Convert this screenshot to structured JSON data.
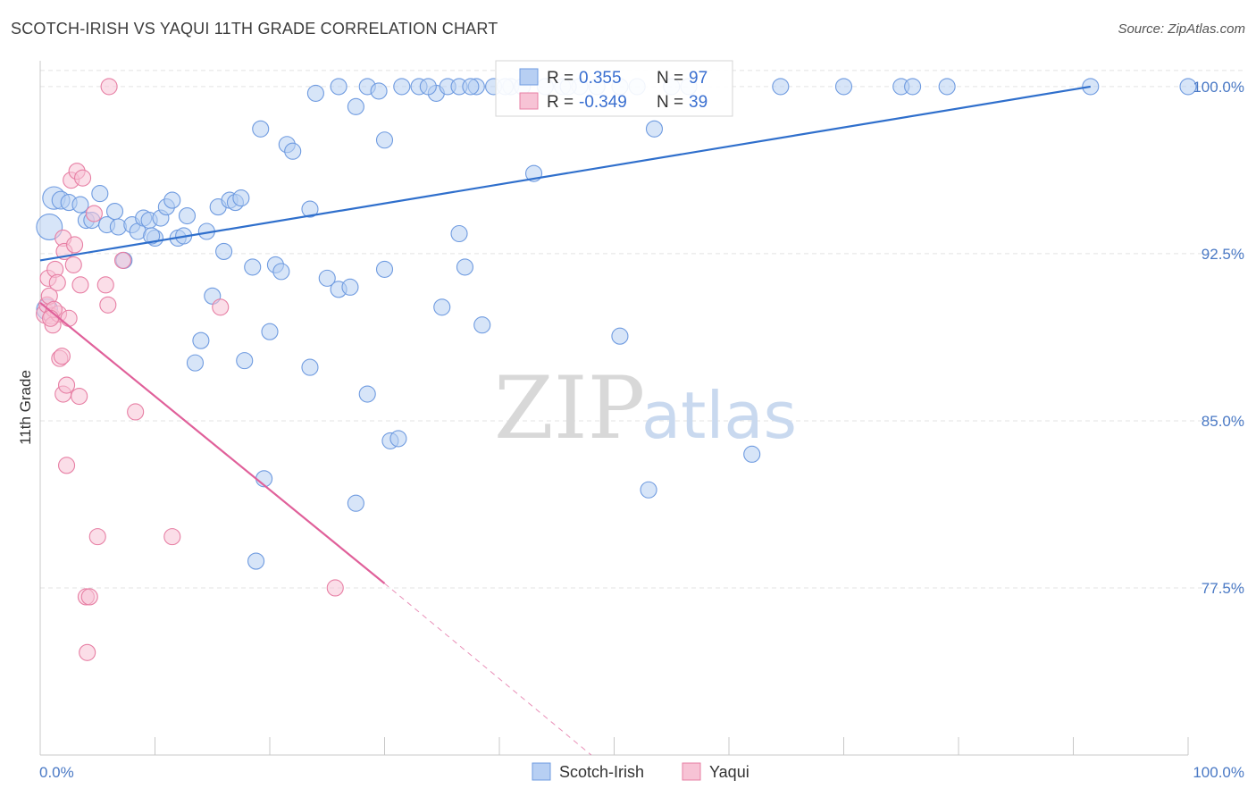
{
  "title": "SCOTCH-IRISH VS YAQUI 11TH GRADE CORRELATION CHART",
  "source": "Source: ZipAtlas.com",
  "watermark": {
    "zip": "ZIP",
    "atlas": "atlas"
  },
  "chart_data": {
    "type": "scatter",
    "title": "SCOTCH-IRISH VS YAQUI 11TH GRADE CORRELATION CHART",
    "xlabel": "",
    "ylabel": "11th Grade",
    "xlim": [
      0,
      100
    ],
    "ylim": [
      70.0,
      101.4
    ],
    "x_tick_labels": [
      {
        "value": 0,
        "label": "0.0%"
      },
      {
        "value": 100,
        "label": "100.0%"
      }
    ],
    "y_ticks": [
      {
        "value": 100.0,
        "label": "100.0%"
      },
      {
        "value": 92.5,
        "label": "92.5%"
      },
      {
        "value": 85.0,
        "label": "85.0%"
      },
      {
        "value": 77.5,
        "label": "77.5%"
      }
    ],
    "grid": true,
    "legend_position": "top-center",
    "legend": [
      {
        "name": "Scotch-Irish",
        "r_label": "R =",
        "r_value": "0.355",
        "n_label": "N =",
        "n_value": "97",
        "color": "#6f9be0",
        "fill": "#b7cff3"
      },
      {
        "name": "Yaqui",
        "r_label": "R =",
        "r_value": "-0.349",
        "n_label": "N =",
        "n_value": "39",
        "color": "#e77fa4",
        "fill": "#f7c3d5"
      }
    ],
    "series": [
      {
        "name": "Scotch-Irish",
        "color": "#6f9be0",
        "fill": "#b7cff3",
        "trend": {
          "x": [
            0,
            91.5
          ],
          "y": [
            92.2,
            100.0
          ],
          "color": "#2f6fcc"
        },
        "points": [
          {
            "x": 1.2,
            "y": 95.0,
            "s": 1.4
          },
          {
            "x": 1.8,
            "y": 94.9,
            "s": 1.1
          },
          {
            "x": 2.5,
            "y": 94.8,
            "s": 1.0
          },
          {
            "x": 3.5,
            "y": 94.7,
            "s": 1.0
          },
          {
            "x": 4.0,
            "y": 94.0,
            "s": 1.0
          },
          {
            "x": 4.5,
            "y": 94.0,
            "s": 1.0
          },
          {
            "x": 5.2,
            "y": 95.2,
            "s": 1.0
          },
          {
            "x": 5.8,
            "y": 93.8,
            "s": 1.0
          },
          {
            "x": 6.5,
            "y": 94.4,
            "s": 1.0
          },
          {
            "x": 6.8,
            "y": 93.7,
            "s": 1.0
          },
          {
            "x": 8.0,
            "y": 93.8,
            "s": 1.0
          },
          {
            "x": 8.5,
            "y": 93.5,
            "s": 1.0
          },
          {
            "x": 9.0,
            "y": 94.1,
            "s": 1.0
          },
          {
            "x": 9.5,
            "y": 94.0,
            "s": 1.0
          },
          {
            "x": 10.0,
            "y": 93.2,
            "s": 1.0
          },
          {
            "x": 10.5,
            "y": 94.1,
            "s": 1.0
          },
          {
            "x": 11.0,
            "y": 94.6,
            "s": 1.0
          },
          {
            "x": 11.5,
            "y": 94.9,
            "s": 1.0
          },
          {
            "x": 12.0,
            "y": 93.2,
            "s": 1.0
          },
          {
            "x": 12.5,
            "y": 93.3,
            "s": 1.0
          },
          {
            "x": 12.8,
            "y": 94.2,
            "s": 1.0
          },
          {
            "x": 14.5,
            "y": 93.5,
            "s": 1.0
          },
          {
            "x": 15.5,
            "y": 94.6,
            "s": 1.0
          },
          {
            "x": 16.5,
            "y": 94.9,
            "s": 1.0
          },
          {
            "x": 17.0,
            "y": 94.8,
            "s": 1.0
          },
          {
            "x": 17.5,
            "y": 95.0,
            "s": 1.0
          },
          {
            "x": 0.8,
            "y": 93.7,
            "s": 1.6
          },
          {
            "x": 0.6,
            "y": 90.0,
            "s": 1.3
          },
          {
            "x": 7.3,
            "y": 92.2,
            "s": 1.0
          },
          {
            "x": 15.0,
            "y": 90.6,
            "s": 1.0
          },
          {
            "x": 16.0,
            "y": 92.6,
            "s": 1.0
          },
          {
            "x": 18.5,
            "y": 91.9,
            "s": 1.0
          },
          {
            "x": 20.5,
            "y": 92.0,
            "s": 1.0
          },
          {
            "x": 21.0,
            "y": 91.7,
            "s": 1.0
          },
          {
            "x": 23.5,
            "y": 94.5,
            "s": 1.0
          },
          {
            "x": 25.0,
            "y": 91.4,
            "s": 1.0
          },
          {
            "x": 26.0,
            "y": 90.9,
            "s": 1.0
          },
          {
            "x": 27.0,
            "y": 91.0,
            "s": 1.0
          },
          {
            "x": 30.0,
            "y": 91.8,
            "s": 1.0
          },
          {
            "x": 14.0,
            "y": 88.6,
            "s": 1.0
          },
          {
            "x": 13.5,
            "y": 87.6,
            "s": 1.0
          },
          {
            "x": 17.8,
            "y": 87.7,
            "s": 1.0
          },
          {
            "x": 20.0,
            "y": 89.0,
            "s": 1.0
          },
          {
            "x": 23.5,
            "y": 87.4,
            "s": 1.0
          },
          {
            "x": 28.5,
            "y": 86.2,
            "s": 1.0
          },
          {
            "x": 30.5,
            "y": 84.1,
            "s": 1.0
          },
          {
            "x": 31.2,
            "y": 84.2,
            "s": 1.0
          },
          {
            "x": 19.5,
            "y": 82.4,
            "s": 1.0
          },
          {
            "x": 27.5,
            "y": 81.3,
            "s": 1.0
          },
          {
            "x": 18.8,
            "y": 78.7,
            "s": 1.0
          },
          {
            "x": 35.0,
            "y": 90.1,
            "s": 1.0
          },
          {
            "x": 37.0,
            "y": 91.9,
            "s": 1.0
          },
          {
            "x": 36.5,
            "y": 93.4,
            "s": 1.0
          },
          {
            "x": 38.5,
            "y": 89.3,
            "s": 1.0
          },
          {
            "x": 43.0,
            "y": 96.1,
            "s": 1.0
          },
          {
            "x": 50.5,
            "y": 88.8,
            "s": 1.0
          },
          {
            "x": 53.0,
            "y": 81.9,
            "s": 1.0
          },
          {
            "x": 62.0,
            "y": 83.5,
            "s": 1.0
          },
          {
            "x": 19.2,
            "y": 98.1,
            "s": 1.0
          },
          {
            "x": 21.5,
            "y": 97.4,
            "s": 1.0
          },
          {
            "x": 22.0,
            "y": 97.1,
            "s": 1.0
          },
          {
            "x": 24.0,
            "y": 99.7,
            "s": 1.0
          },
          {
            "x": 26.0,
            "y": 100.0,
            "s": 1.0
          },
          {
            "x": 27.5,
            "y": 99.1,
            "s": 1.0
          },
          {
            "x": 28.5,
            "y": 100.0,
            "s": 1.0
          },
          {
            "x": 29.5,
            "y": 99.8,
            "s": 1.0
          },
          {
            "x": 30.0,
            "y": 97.6,
            "s": 1.0
          },
          {
            "x": 31.5,
            "y": 100.0,
            "s": 1.0
          },
          {
            "x": 33.0,
            "y": 100.0,
            "s": 1.0
          },
          {
            "x": 34.5,
            "y": 99.7,
            "s": 1.0
          },
          {
            "x": 35.5,
            "y": 100.0,
            "s": 1.0
          },
          {
            "x": 36.5,
            "y": 100.0,
            "s": 1.0
          },
          {
            "x": 38.0,
            "y": 100.0,
            "s": 1.0
          },
          {
            "x": 39.5,
            "y": 100.0,
            "s": 1.0
          },
          {
            "x": 41.0,
            "y": 100.0,
            "s": 1.0
          },
          {
            "x": 42.0,
            "y": 100.0,
            "s": 1.0
          },
          {
            "x": 44.0,
            "y": 100.0,
            "s": 1.0
          },
          {
            "x": 45.5,
            "y": 100.0,
            "s": 1.0
          },
          {
            "x": 47.0,
            "y": 100.0,
            "s": 1.0
          },
          {
            "x": 48.5,
            "y": 100.0,
            "s": 1.0
          },
          {
            "x": 50.5,
            "y": 100.0,
            "s": 1.0
          },
          {
            "x": 52.0,
            "y": 100.0,
            "s": 1.0
          },
          {
            "x": 53.5,
            "y": 98.1,
            "s": 1.0
          },
          {
            "x": 55.0,
            "y": 100.0,
            "s": 1.0
          },
          {
            "x": 56.5,
            "y": 100.0,
            "s": 1.0
          },
          {
            "x": 64.5,
            "y": 100.0,
            "s": 1.0
          },
          {
            "x": 70.0,
            "y": 100.0,
            "s": 1.0
          },
          {
            "x": 75.0,
            "y": 100.0,
            "s": 1.0
          },
          {
            "x": 76.0,
            "y": 100.0,
            "s": 1.0
          },
          {
            "x": 79.0,
            "y": 100.0,
            "s": 1.0
          },
          {
            "x": 91.5,
            "y": 100.0,
            "s": 1.0
          },
          {
            "x": 100.0,
            "y": 100.0,
            "s": 1.0
          },
          {
            "x": 46.0,
            "y": 100.0,
            "s": 1.0
          },
          {
            "x": 40.5,
            "y": 100.0,
            "s": 1.0
          },
          {
            "x": 37.5,
            "y": 100.0,
            "s": 1.0
          },
          {
            "x": 33.8,
            "y": 100.0,
            "s": 1.0
          },
          {
            "x": 9.7,
            "y": 93.3,
            "s": 1.0
          }
        ]
      },
      {
        "name": "Yaqui",
        "color": "#e77fa4",
        "fill": "#f7c3d5",
        "trend": {
          "x": [
            0,
            30.0
          ],
          "y": [
            90.3,
            77.7
          ],
          "color": "#e0609a",
          "dash_to": {
            "x": 48.0,
            "y": 70.0
          }
        },
        "points": [
          {
            "x": 0.5,
            "y": 89.8,
            "s": 1.2
          },
          {
            "x": 0.6,
            "y": 90.2,
            "s": 1.0
          },
          {
            "x": 0.7,
            "y": 91.4,
            "s": 1.0
          },
          {
            "x": 0.8,
            "y": 90.6,
            "s": 1.0
          },
          {
            "x": 1.0,
            "y": 89.7,
            "s": 1.0
          },
          {
            "x": 1.1,
            "y": 89.3,
            "s": 1.0
          },
          {
            "x": 1.3,
            "y": 91.8,
            "s": 1.0
          },
          {
            "x": 1.5,
            "y": 91.2,
            "s": 1.0
          },
          {
            "x": 1.6,
            "y": 89.8,
            "s": 1.0
          },
          {
            "x": 1.7,
            "y": 87.8,
            "s": 1.0
          },
          {
            "x": 1.9,
            "y": 87.9,
            "s": 1.0
          },
          {
            "x": 2.0,
            "y": 93.2,
            "s": 1.0
          },
          {
            "x": 2.1,
            "y": 92.6,
            "s": 1.0
          },
          {
            "x": 2.0,
            "y": 86.2,
            "s": 1.0
          },
          {
            "x": 2.3,
            "y": 86.6,
            "s": 1.0
          },
          {
            "x": 2.3,
            "y": 83.0,
            "s": 1.0
          },
          {
            "x": 2.5,
            "y": 89.6,
            "s": 1.0
          },
          {
            "x": 2.7,
            "y": 95.8,
            "s": 1.0
          },
          {
            "x": 2.9,
            "y": 92.0,
            "s": 1.0
          },
          {
            "x": 3.0,
            "y": 92.9,
            "s": 1.0
          },
          {
            "x": 3.2,
            "y": 96.2,
            "s": 1.0
          },
          {
            "x": 3.4,
            "y": 86.1,
            "s": 1.0
          },
          {
            "x": 3.5,
            "y": 91.1,
            "s": 1.0
          },
          {
            "x": 3.7,
            "y": 95.9,
            "s": 1.0
          },
          {
            "x": 4.0,
            "y": 77.1,
            "s": 1.0
          },
          {
            "x": 4.3,
            "y": 77.1,
            "s": 1.0
          },
          {
            "x": 4.1,
            "y": 74.6,
            "s": 1.0
          },
          {
            "x": 4.7,
            "y": 94.3,
            "s": 1.0
          },
          {
            "x": 5.0,
            "y": 79.8,
            "s": 1.0
          },
          {
            "x": 5.7,
            "y": 91.1,
            "s": 1.0
          },
          {
            "x": 5.9,
            "y": 90.2,
            "s": 1.0
          },
          {
            "x": 7.2,
            "y": 92.2,
            "s": 1.0
          },
          {
            "x": 8.3,
            "y": 85.4,
            "s": 1.0
          },
          {
            "x": 11.5,
            "y": 79.8,
            "s": 1.0
          },
          {
            "x": 15.7,
            "y": 90.1,
            "s": 1.0
          },
          {
            "x": 25.7,
            "y": 77.5,
            "s": 1.0
          },
          {
            "x": 6.0,
            "y": 100.0,
            "s": 1.0
          },
          {
            "x": 1.2,
            "y": 90.0,
            "s": 1.0
          },
          {
            "x": 0.9,
            "y": 89.6,
            "s": 1.0
          }
        ]
      }
    ]
  }
}
